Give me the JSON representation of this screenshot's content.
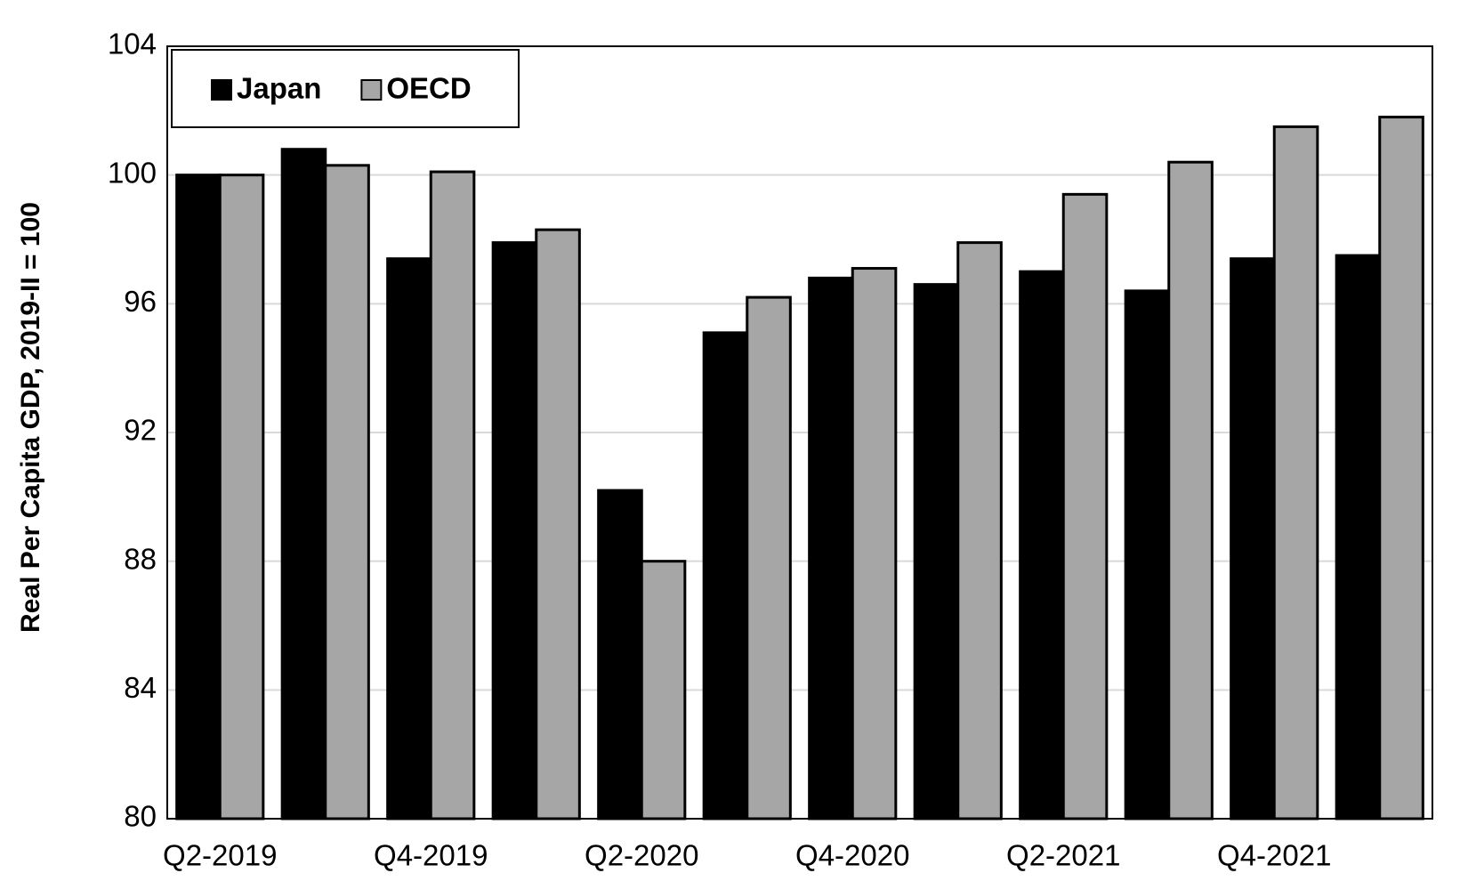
{
  "chart_data": {
    "type": "bar",
    "y_label": "Real Per Capita GDP, 2019-II = 100",
    "categories": [
      "Q2-2019",
      null,
      "Q4-2019",
      null,
      "Q2-2020",
      null,
      "Q4-2020",
      null,
      "Q2-2021",
      null,
      "Q4-2021",
      null
    ],
    "series": [
      {
        "name": "Japan",
        "color": "#000000",
        "values": [
          100,
          100.8,
          97.4,
          97.9,
          90.2,
          95.1,
          96.8,
          96.6,
          97.0,
          96.4,
          97.4,
          97.5
        ]
      },
      {
        "name": "OECD",
        "color": "#a6a6a6",
        "values": [
          100,
          100.3,
          100.1,
          98.3,
          88.0,
          96.2,
          97.1,
          97.9,
          99.4,
          100.4,
          101.5,
          101.8
        ]
      }
    ],
    "ylim": [
      80,
      104
    ],
    "yticks": [
      80,
      84,
      88,
      92,
      96,
      100,
      104
    ],
    "grid": true,
    "legend": "top-left"
  }
}
